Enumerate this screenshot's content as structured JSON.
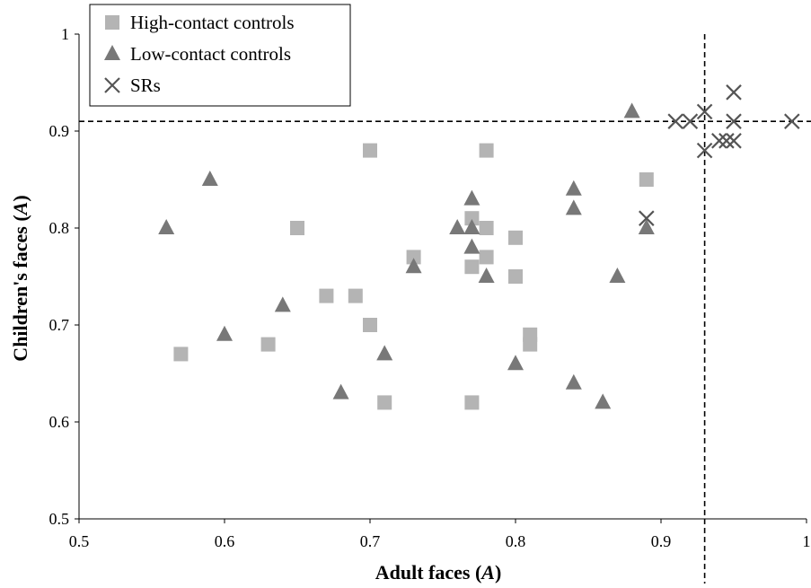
{
  "chart_data": {
    "type": "scatter",
    "xlabel": "Adult faces",
    "xlabel_var": "A",
    "ylabel": "Children's faces",
    "ylabel_var": "A",
    "xlim": [
      0.5,
      1
    ],
    "ylim": [
      0.5,
      1
    ],
    "xticks": [
      "0.5",
      "0.6",
      "0.7",
      "0.8",
      "0.9",
      "1"
    ],
    "yticks": [
      "0.5",
      "0.6",
      "0.7",
      "0.8",
      "0.9",
      "1"
    ],
    "grid": false,
    "legend_position": "top-left",
    "reference_lines": {
      "x": 0.93,
      "y": 0.91,
      "style": "dashed"
    },
    "series": [
      {
        "name": "High-contact controls",
        "marker": "square",
        "color": "#b4b4b4",
        "points": [
          [
            0.57,
            0.67
          ],
          [
            0.63,
            0.68
          ],
          [
            0.65,
            0.8
          ],
          [
            0.67,
            0.73
          ],
          [
            0.69,
            0.73
          ],
          [
            0.7,
            0.88
          ],
          [
            0.7,
            0.7
          ],
          [
            0.71,
            0.62
          ],
          [
            0.73,
            0.77
          ],
          [
            0.77,
            0.81
          ],
          [
            0.77,
            0.76
          ],
          [
            0.77,
            0.62
          ],
          [
            0.78,
            0.88
          ],
          [
            0.78,
            0.8
          ],
          [
            0.78,
            0.77
          ],
          [
            0.8,
            0.79
          ],
          [
            0.8,
            0.75
          ],
          [
            0.81,
            0.69
          ],
          [
            0.81,
            0.68
          ],
          [
            0.89,
            0.85
          ]
        ]
      },
      {
        "name": "Low-contact controls",
        "marker": "triangle",
        "color": "#787878",
        "points": [
          [
            0.56,
            0.8
          ],
          [
            0.59,
            0.85
          ],
          [
            0.6,
            0.69
          ],
          [
            0.64,
            0.72
          ],
          [
            0.68,
            0.63
          ],
          [
            0.71,
            0.67
          ],
          [
            0.73,
            0.76
          ],
          [
            0.76,
            0.8
          ],
          [
            0.77,
            0.83
          ],
          [
            0.77,
            0.8
          ],
          [
            0.77,
            0.78
          ],
          [
            0.78,
            0.75
          ],
          [
            0.8,
            0.66
          ],
          [
            0.84,
            0.84
          ],
          [
            0.84,
            0.82
          ],
          [
            0.84,
            0.64
          ],
          [
            0.86,
            0.62
          ],
          [
            0.87,
            0.75
          ],
          [
            0.88,
            0.92
          ],
          [
            0.89,
            0.8
          ]
        ]
      },
      {
        "name": "SRs",
        "marker": "cross",
        "color": "#555555",
        "points": [
          [
            0.89,
            0.81
          ],
          [
            0.91,
            0.91
          ],
          [
            0.92,
            0.91
          ],
          [
            0.93,
            0.92
          ],
          [
            0.93,
            0.88
          ],
          [
            0.94,
            0.89
          ],
          [
            0.945,
            0.89
          ],
          [
            0.95,
            0.94
          ],
          [
            0.95,
            0.91
          ],
          [
            0.95,
            0.89
          ],
          [
            0.99,
            0.91
          ]
        ]
      }
    ]
  }
}
